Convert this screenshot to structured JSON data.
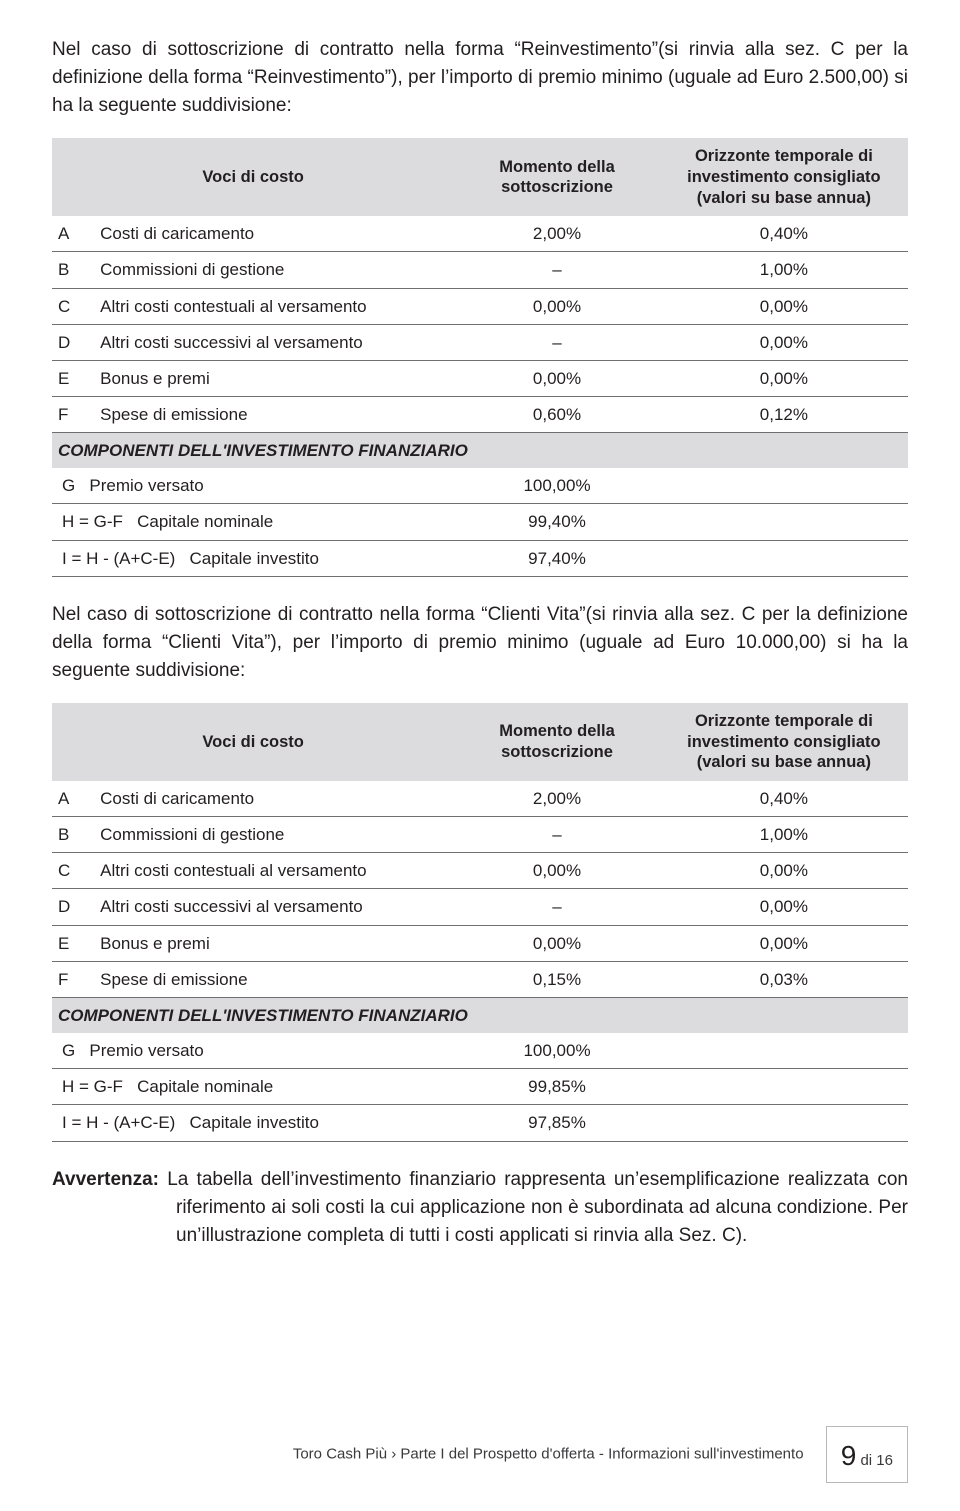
{
  "para1": "Nel caso di sottoscrizione di contratto nella forma “Reinvestimento”(si rinvia alla sez. C per la definizione della forma “Reinvestimento”), per l’importo di premio minimo (uguale ad Euro 2.500,00) si ha la seguente suddivisione:",
  "para2": "Nel caso di sottoscrizione di contratto nella forma “Clienti Vita”(si rinvia alla sez. C per la definizione della forma “Clienti Vita”), per l’importo di premio minimo (uguale ad Euro 10.000,00) si ha la seguente suddivisione:",
  "warn_label": "Avvertenza:",
  "warn_text": "La tabella dell’investimento finanziario rappresenta un’esemplificazione realizzata con riferimento ai soli costi la cui applicazione non è subordinata ad alcuna condizione. Per un’illustrazione completa di tutti i costi applicati si rinvia alla Sez. C).",
  "headers": {
    "voci": "Voci di costo",
    "momento": "Momento della sottoscrizione",
    "orizzonte": "Orizzonte temporale di investimento consigliato (valori su base annua)"
  },
  "section_label": "COMPONENTI DELL'INVESTIMENTO FINANZIARIO",
  "t1": {
    "rows": [
      {
        "code": "A",
        "label": "Costi di caricamento",
        "c2": "2,00%",
        "c3": "0,40%"
      },
      {
        "code": "B",
        "label": "Commissioni di gestione",
        "c2": "–",
        "c3": "1,00%"
      },
      {
        "code": "C",
        "label": "Altri costi contestuali al versamento",
        "c2": "0,00%",
        "c3": "0,00%"
      },
      {
        "code": "D",
        "label": "Altri costi successivi al versamento",
        "c2": "–",
        "c3": "0,00%"
      },
      {
        "code": "E",
        "label": "Bonus e premi",
        "c2": "0,00%",
        "c3": "0,00%"
      },
      {
        "code": "F",
        "label": "Spese di emissione",
        "c2": "0,60%",
        "c3": "0,12%"
      }
    ],
    "rows2": [
      {
        "code": "G",
        "label": "Premio versato",
        "c2": "100,00%",
        "c3": ""
      },
      {
        "code": "H = G-F",
        "label": "Capitale nominale",
        "c2": "99,40%",
        "c3": ""
      },
      {
        "code": "I = H - (A+C-E)",
        "label": "Capitale investito",
        "c2": "97,40%",
        "c3": ""
      }
    ]
  },
  "t2": {
    "rows": [
      {
        "code": "A",
        "label": "Costi di caricamento",
        "c2": "2,00%",
        "c3": "0,40%"
      },
      {
        "code": "B",
        "label": "Commissioni di gestione",
        "c2": "–",
        "c3": "1,00%"
      },
      {
        "code": "C",
        "label": "Altri costi contestuali al versamento",
        "c2": "0,00%",
        "c3": "0,00%"
      },
      {
        "code": "D",
        "label": "Altri costi successivi al versamento",
        "c2": "–",
        "c3": "0,00%"
      },
      {
        "code": "E",
        "label": "Bonus e premi",
        "c2": "0,00%",
        "c3": "0,00%"
      },
      {
        "code": "F",
        "label": "Spese di emissione",
        "c2": "0,15%",
        "c3": "0,03%"
      }
    ],
    "rows2": [
      {
        "code": "G",
        "label": "Premio versato",
        "c2": "100,00%",
        "c3": ""
      },
      {
        "code": "H = G-F",
        "label": "Capitale nominale",
        "c2": "99,85%",
        "c3": ""
      },
      {
        "code": "I = H - (A+C-E)",
        "label": "Capitale investito",
        "c2": "97,85%",
        "c3": ""
      }
    ]
  },
  "footer": {
    "doc": "Toro Cash Più › Parte I del Prospetto d'offerta - Informazioni sull'investimento",
    "page": "9",
    "of": "di 16"
  },
  "colors": {
    "header_bg": "#dcdcde",
    "border": "#6f6f72",
    "text": "#231f20"
  }
}
